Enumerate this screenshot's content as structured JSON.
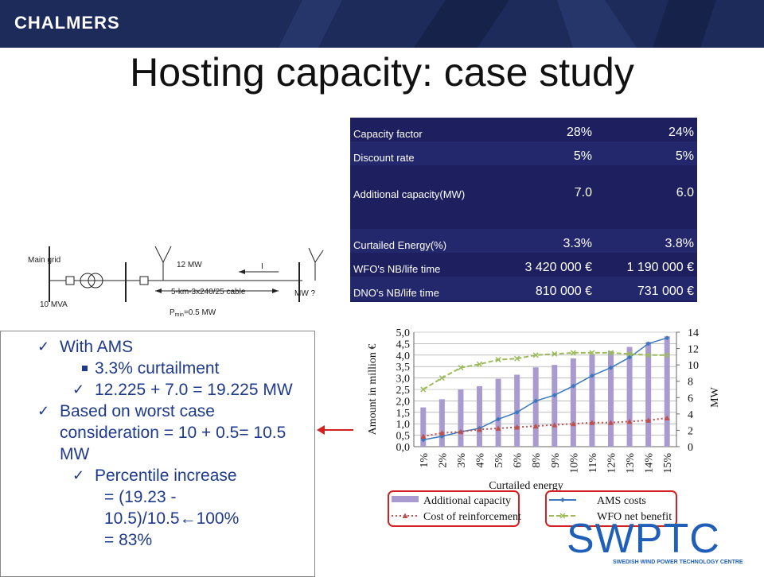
{
  "header": {
    "logo": "CHALMERS",
    "title": "Hosting capacity: case study"
  },
  "table": {
    "rows": [
      [
        "Capacity factor",
        "28%",
        "24%"
      ],
      [
        "Discount rate",
        "5%",
        "5%"
      ],
      [
        "Additional capacity(MW)",
        "7.0",
        "6.0"
      ],
      [
        "Curtailed Energy(%)",
        "3.3%",
        "3.8%"
      ],
      [
        "WFO's NB/life time",
        "3 420 000 €",
        "1 190 000 €"
      ],
      [
        "DNO's NB/life time",
        "810 000 €",
        "731 000 €"
      ]
    ]
  },
  "diagram": {
    "main_grid": "Main grid",
    "transformer": "10 MVA",
    "wind_power": "12 MW",
    "current": "I",
    "cable": "5-km-3x240/25  cable",
    "unknown": "MW ?",
    "pmin_p": "P",
    "pmin_sub": "min",
    "pmin_value": "=0.5 MW"
  },
  "bullets": [
    {
      "level": 1,
      "marker": "check",
      "text": "With AMS"
    },
    {
      "level": 2,
      "marker": "square",
      "text": "3.3% curtailment"
    },
    {
      "level": 2,
      "marker": "check",
      "text": "12.225 + 7.0 = 19.225 MW"
    },
    {
      "level": 1,
      "marker": "check",
      "text": "Based on worst case consideration = 10  + 0.5= 10.5 MW"
    },
    {
      "level": 2,
      "marker": "check",
      "text": "Percentile increase"
    },
    {
      "level": 3,
      "marker": "none",
      "text": "= (19.23 - 10.5)/10.5←100%"
    },
    {
      "level": 3,
      "marker": "none",
      "text": "= 83%"
    }
  ],
  "chart_data": {
    "type": "bar_line",
    "xlabel": "Curtailed energy",
    "ylabel": "Amount  in million €",
    "y2label": "MW",
    "categories": [
      "1%",
      "2%",
      "3%",
      "4%",
      "5%",
      "6%",
      "8%",
      "9%",
      "10%",
      "11%",
      "12%",
      "13%",
      "14%",
      "15%"
    ],
    "ylim": [
      0,
      5
    ],
    "yticks": [
      {
        "value": 0,
        "label": "0,0"
      },
      {
        "value": 0.5,
        "label": "0,5"
      },
      {
        "value": 1,
        "label": "1,0"
      },
      {
        "value": 1.5,
        "label": "1,5"
      },
      {
        "value": 2,
        "label": "2,0"
      },
      {
        "value": 2.5,
        "label": "2,5"
      },
      {
        "value": 3,
        "label": "3,0"
      },
      {
        "value": 3.5,
        "label": "3,5"
      },
      {
        "value": 4,
        "label": "4,0"
      },
      {
        "value": 4.5,
        "label": "4,5"
      },
      {
        "value": 5,
        "label": "5,0"
      }
    ],
    "y2lim": [
      0,
      14
    ],
    "y2ticks": [
      0,
      2,
      4,
      6,
      8,
      10,
      12,
      14
    ],
    "grid": true,
    "series": [
      {
        "name": "Additional capacity",
        "kind": "bar",
        "axis": "y2",
        "color": "#a99bd0",
        "values": [
          4.8,
          5.8,
          7.0,
          7.4,
          8.3,
          8.8,
          9.7,
          10.0,
          10.8,
          11.3,
          11.7,
          12.2,
          12.8,
          13.5
        ]
      },
      {
        "name": "AMS costs",
        "kind": "line",
        "style": "solid",
        "marker": "diamond",
        "color": "#3a78c0",
        "values": [
          0.3,
          0.45,
          0.65,
          0.8,
          1.2,
          1.5,
          2.0,
          2.25,
          2.65,
          3.1,
          3.45,
          3.9,
          4.5,
          4.75
        ]
      },
      {
        "name": "Cost of reinforcement",
        "kind": "line",
        "style": "dotted",
        "marker": "triangle",
        "color": "#c0504d",
        "values": [
          0.45,
          0.6,
          0.65,
          0.75,
          0.8,
          0.85,
          0.9,
          0.95,
          1.0,
          1.05,
          1.05,
          1.1,
          1.15,
          1.25
        ]
      },
      {
        "name": "WFO net benefit",
        "kind": "line",
        "style": "dashed",
        "marker": "x",
        "color": "#9bbb59",
        "values": [
          2.5,
          3.0,
          3.45,
          3.6,
          3.8,
          3.85,
          4.0,
          4.05,
          4.1,
          4.1,
          4.1,
          4.05,
          4.0,
          4.0
        ]
      }
    ]
  },
  "footer": {
    "logo": "SWPTC",
    "subtitle": "SWEDISH WIND POWER TECHNOLOGY CENTRE"
  }
}
